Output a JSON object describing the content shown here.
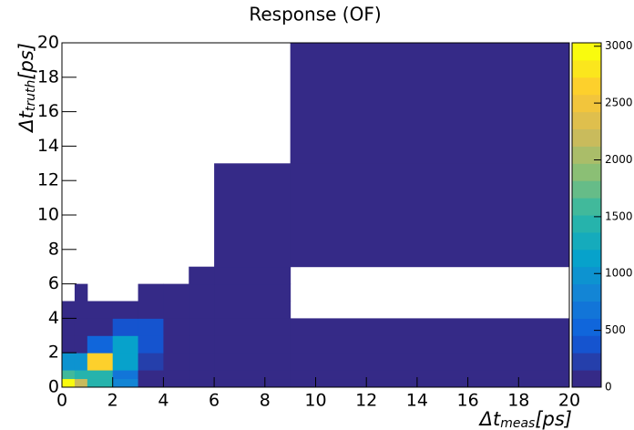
{
  "chart_data": {
    "type": "heatmap",
    "title": "Response (OF)",
    "xlabel": {
      "main": "Δt",
      "sub": "meas",
      "unit": "[ps]"
    },
    "ylabel": {
      "main": "Δt",
      "sub": "truth",
      "unit": "[ps]"
    },
    "x_edges": [
      0,
      0.5,
      1,
      2,
      3,
      4,
      5,
      6,
      9,
      20
    ],
    "y_edges": [
      0,
      0.5,
      1,
      2,
      3,
      4,
      5,
      6,
      7,
      13,
      20
    ],
    "z": [
      [
        3000,
        2200,
        1500,
        800,
        30,
        30,
        30,
        30,
        30
      ],
      [
        1600,
        1500,
        1500,
        700,
        30,
        30,
        30,
        30,
        30
      ],
      [
        1000,
        1000,
        2600,
        1100,
        300,
        30,
        30,
        30,
        30
      ],
      [
        150,
        150,
        600,
        1100,
        400,
        30,
        30,
        30,
        30
      ],
      [
        60,
        60,
        60,
        400,
        400,
        30,
        30,
        30,
        30
      ],
      [
        30,
        30,
        30,
        30,
        30,
        30,
        30,
        30,
        null
      ],
      [
        null,
        30,
        null,
        null,
        30,
        30,
        30,
        30,
        null
      ],
      [
        null,
        null,
        null,
        null,
        null,
        null,
        30,
        30,
        null
      ],
      [
        null,
        null,
        null,
        null,
        null,
        null,
        null,
        30,
        30
      ],
      [
        null,
        null,
        null,
        null,
        null,
        null,
        null,
        null,
        30
      ]
    ],
    "xlim": [
      0,
      20
    ],
    "xticks": [
      0,
      2,
      4,
      6,
      8,
      10,
      12,
      14,
      16,
      18,
      20
    ],
    "ylim": [
      0,
      20
    ],
    "yticks": [
      0,
      2,
      4,
      6,
      8,
      10,
      12,
      14,
      16,
      18,
      20
    ],
    "zlim": [
      0,
      3030
    ],
    "zticks": [
      0,
      500,
      1000,
      1500,
      2000,
      2500,
      3000
    ],
    "palette": [
      "#352a87",
      "#0f5cdd",
      "#1481d6",
      "#06a4ca",
      "#2eb7a4",
      "#87bf77",
      "#d1bb59",
      "#fec832",
      "#f9fb0e"
    ]
  }
}
